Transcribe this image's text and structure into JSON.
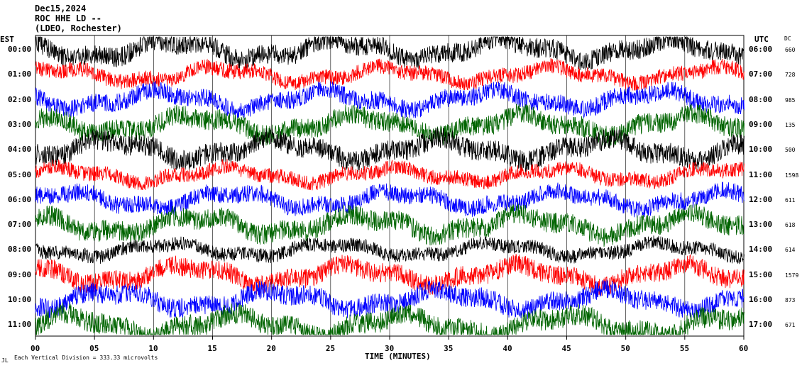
{
  "header": {
    "date": "Dec15,2024",
    "station": "ROC HHE LD --",
    "network": "(LDEO, Rochester)"
  },
  "labels": {
    "left_axis": "EST",
    "right_axis": "UTC",
    "dc_header": "DC",
    "xlabel": "TIME (MINUTES)",
    "scale_note": "Each Vertical Division = 333.33 microvolts",
    "corner_mark": "JL"
  },
  "colors": {
    "trace_cycle": [
      "#000000",
      "#ff0000",
      "#0000ff",
      "#006400"
    ],
    "grid": "#000000",
    "background": "#ffffff"
  },
  "chart_data": {
    "type": "line",
    "x_ticks": [
      0,
      5,
      10,
      15,
      20,
      25,
      30,
      35,
      40,
      45,
      50,
      55,
      60
    ],
    "x_tick_labels": [
      "00",
      "05",
      "10",
      "15",
      "20",
      "25",
      "30",
      "35",
      "40",
      "45",
      "50",
      "55",
      "60"
    ],
    "xlim": [
      0,
      60
    ],
    "xlabel": "TIME (MINUTES)",
    "grid": true,
    "rows": [
      {
        "est": "00:00",
        "utc": "06:00",
        "dc": "660"
      },
      {
        "est": "01:00",
        "utc": "07:00",
        "dc": "728"
      },
      {
        "est": "02:00",
        "utc": "08:00",
        "dc": "985"
      },
      {
        "est": "03:00",
        "utc": "09:00",
        "dc": "135"
      },
      {
        "est": "04:00",
        "utc": "10:00",
        "dc": "500"
      },
      {
        "est": "05:00",
        "utc": "11:00",
        "dc": "1598"
      },
      {
        "est": "06:00",
        "utc": "12:00",
        "dc": "611"
      },
      {
        "est": "07:00",
        "utc": "13:00",
        "dc": "618"
      },
      {
        "est": "08:00",
        "utc": "14:00",
        "dc": "614"
      },
      {
        "est": "09:00",
        "utc": "15:00",
        "dc": "1579"
      },
      {
        "est": "10:00",
        "utc": "16:00",
        "dc": "873"
      },
      {
        "est": "11:00",
        "utc": "17:00",
        "dc": "671"
      }
    ],
    "scale_microvolts_per_division": 333.33
  }
}
